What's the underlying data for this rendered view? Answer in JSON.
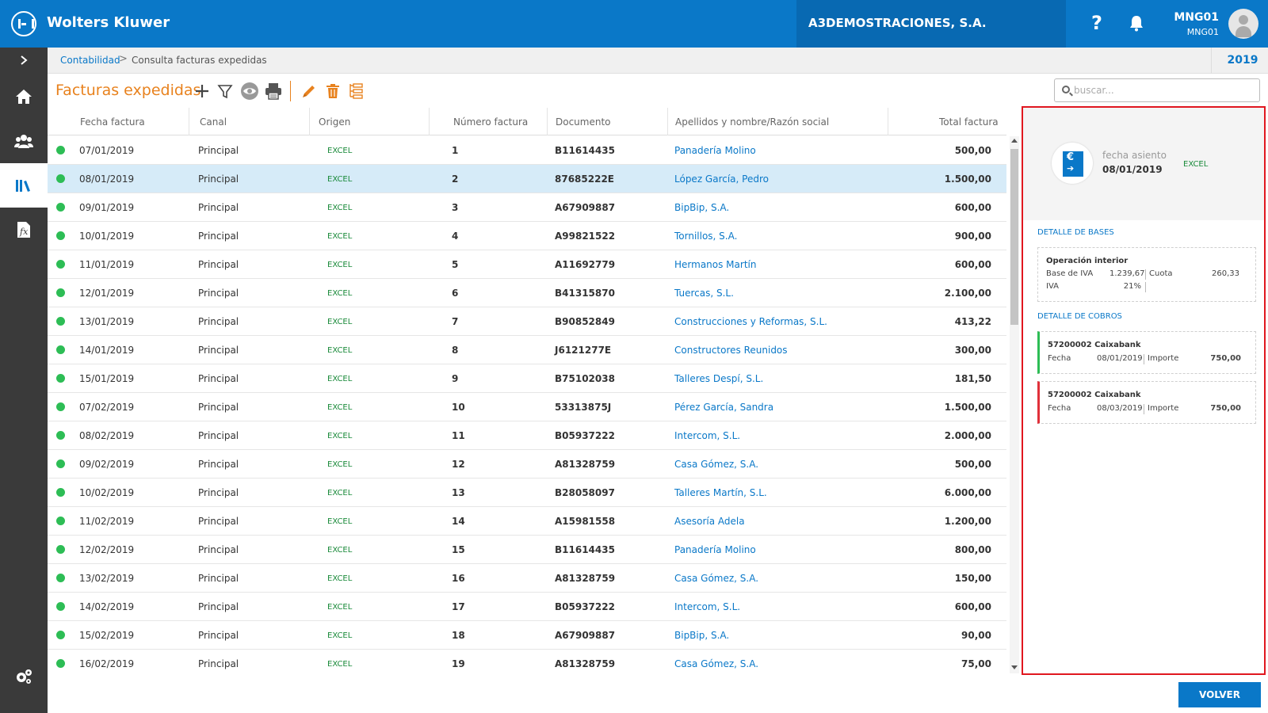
{
  "header": {
    "brand": "Wolters Kluwer",
    "company": "A3DEMOSTRACIONES, S.A.",
    "help": "?",
    "user_name": "MNG01",
    "user_sub": "MNG01"
  },
  "breadcrumb": {
    "root": "Contabilidad",
    "separator": ">",
    "current": "Consulta facturas expedidas",
    "year": "2019"
  },
  "toolbar": {
    "title": "Facturas expedidas",
    "icons": [
      "plus-icon",
      "filter-icon",
      "eye-icon",
      "print-icon",
      "pencil-icon",
      "trash-icon",
      "list-tree-icon"
    ],
    "search_placeholder": "buscar..."
  },
  "table": {
    "columns": {
      "fecha": "Fecha factura",
      "canal": "Canal",
      "origen": "Origen",
      "numero": "Número factura",
      "documento": "Documento",
      "nombre": "Apellidos y nombre/Razón social",
      "total": "Total factura"
    },
    "selected_index": 1,
    "rows": [
      {
        "fecha": "07/01/2019",
        "canal": "Principal",
        "origen": "EXCEL",
        "numero": "1",
        "documento": "B11614435",
        "nombre": "Panadería Molino",
        "total": "500,00"
      },
      {
        "fecha": "08/01/2019",
        "canal": "Principal",
        "origen": "EXCEL",
        "numero": "2",
        "documento": "87685222E",
        "nombre": "López García, Pedro",
        "total": "1.500,00"
      },
      {
        "fecha": "09/01/2019",
        "canal": "Principal",
        "origen": "EXCEL",
        "numero": "3",
        "documento": "A67909887",
        "nombre": "BipBip, S.A.",
        "total": "600,00"
      },
      {
        "fecha": "10/01/2019",
        "canal": "Principal",
        "origen": "EXCEL",
        "numero": "4",
        "documento": "A99821522",
        "nombre": "Tornillos, S.A.",
        "total": "900,00"
      },
      {
        "fecha": "11/01/2019",
        "canal": "Principal",
        "origen": "EXCEL",
        "numero": "5",
        "documento": "A11692779",
        "nombre": "Hermanos Martín",
        "total": "600,00"
      },
      {
        "fecha": "12/01/2019",
        "canal": "Principal",
        "origen": "EXCEL",
        "numero": "6",
        "documento": "B41315870",
        "nombre": "Tuercas, S.L.",
        "total": "2.100,00"
      },
      {
        "fecha": "13/01/2019",
        "canal": "Principal",
        "origen": "EXCEL",
        "numero": "7",
        "documento": "B90852849",
        "nombre": "Construcciones y Reformas, S.L.",
        "total": "413,22"
      },
      {
        "fecha": "14/01/2019",
        "canal": "Principal",
        "origen": "EXCEL",
        "numero": "8",
        "documento": "J6121277E",
        "nombre": "Constructores Reunidos",
        "total": "300,00"
      },
      {
        "fecha": "15/01/2019",
        "canal": "Principal",
        "origen": "EXCEL",
        "numero": "9",
        "documento": "B75102038",
        "nombre": "Talleres Despí, S.L.",
        "total": "181,50"
      },
      {
        "fecha": "07/02/2019",
        "canal": "Principal",
        "origen": "EXCEL",
        "numero": "10",
        "documento": "53313875J",
        "nombre": "Pérez García, Sandra",
        "total": "1.500,00"
      },
      {
        "fecha": "08/02/2019",
        "canal": "Principal",
        "origen": "EXCEL",
        "numero": "11",
        "documento": "B05937222",
        "nombre": "Intercom, S.L.",
        "total": "2.000,00"
      },
      {
        "fecha": "09/02/2019",
        "canal": "Principal",
        "origen": "EXCEL",
        "numero": "12",
        "documento": "A81328759",
        "nombre": "Casa Gómez, S.A.",
        "total": "500,00"
      },
      {
        "fecha": "10/02/2019",
        "canal": "Principal",
        "origen": "EXCEL",
        "numero": "13",
        "documento": "B28058097",
        "nombre": "Talleres Martín, S.L.",
        "total": "6.000,00"
      },
      {
        "fecha": "11/02/2019",
        "canal": "Principal",
        "origen": "EXCEL",
        "numero": "14",
        "documento": "A15981558",
        "nombre": "Asesoría Adela",
        "total": "1.200,00"
      },
      {
        "fecha": "12/02/2019",
        "canal": "Principal",
        "origen": "EXCEL",
        "numero": "15",
        "documento": "B11614435",
        "nombre": "Panadería Molino",
        "total": "800,00"
      },
      {
        "fecha": "13/02/2019",
        "canal": "Principal",
        "origen": "EXCEL",
        "numero": "16",
        "documento": "A81328759",
        "nombre": "Casa Gómez, S.A.",
        "total": "150,00"
      },
      {
        "fecha": "14/02/2019",
        "canal": "Principal",
        "origen": "EXCEL",
        "numero": "17",
        "documento": "B05937222",
        "nombre": "Intercom, S.L.",
        "total": "600,00"
      },
      {
        "fecha": "15/02/2019",
        "canal": "Principal",
        "origen": "EXCEL",
        "numero": "18",
        "documento": "A67909887",
        "nombre": "BipBip, S.A.",
        "total": "90,00"
      },
      {
        "fecha": "16/02/2019",
        "canal": "Principal",
        "origen": "EXCEL",
        "numero": "19",
        "documento": "A81328759",
        "nombre": "Casa Gómez, S.A.",
        "total": "75,00"
      }
    ]
  },
  "panel": {
    "fecha_asiento_label": "fecha asiento",
    "fecha_asiento_value": "08/01/2019",
    "origen": "EXCEL",
    "bases_title": "DETALLE DE BASES",
    "base": {
      "title": "Operación interior",
      "base_label": "Base de IVA",
      "base_value": "1.239,67",
      "cuota_label": "Cuota",
      "cuota_value": "260,33",
      "iva_label": "IVA",
      "iva_value": "21%"
    },
    "cobros_title": "DETALLE DE COBROS",
    "cobros": [
      {
        "title": "57200002 Caixabank",
        "fecha_label": "Fecha",
        "fecha": "08/01/2019",
        "importe_label": "Importe",
        "importe": "750,00"
      },
      {
        "title": "57200002 Caixabank",
        "fecha_label": "Fecha",
        "fecha": "08/03/2019",
        "importe_label": "Importe",
        "importe": "750,00"
      }
    ]
  },
  "footer": {
    "volver_label": "VOLVER"
  },
  "colors": {
    "brand_blue": "#0a78c8",
    "accent_orange": "#e8821e",
    "status_green": "#2dbd55",
    "highlight_red": "#e0171f"
  }
}
